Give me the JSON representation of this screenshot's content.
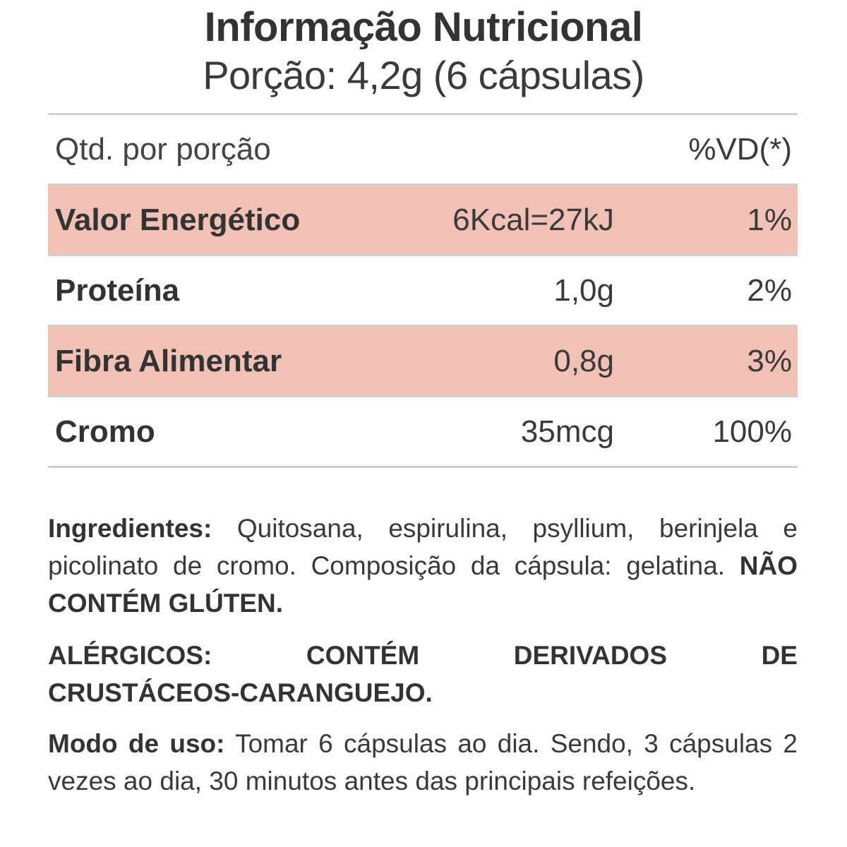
{
  "header": {
    "title": "Informação Nutricional",
    "subtitle": "Porção: 4,2g (6 cápsulas)"
  },
  "table": {
    "head_left": "Qtd. por porção",
    "head_right": "%VD(*)",
    "rows": [
      {
        "name": "Valor Energético",
        "qty": "6Kcal=27kJ",
        "vd": "1%"
      },
      {
        "name": "Proteína",
        "qty": "1,0g",
        "vd": "2%"
      },
      {
        "name": "Fibra Alimentar",
        "qty": "0,8g",
        "vd": "3%"
      },
      {
        "name": "Cromo",
        "qty": "35mcg",
        "vd": "100%"
      }
    ]
  },
  "ingredients": {
    "label": "Ingredientes:",
    "text": " Quitosana, espirulina, psyllium, berinjela e picolinato de cromo. Composição da cápsula: gelatina. ",
    "warning": "NÃO CONTÉM GLÚTEN."
  },
  "allergens": {
    "line1": [
      "ALÉRGICOS:",
      "CONTÉM",
      "DERIVADOS",
      "DE"
    ],
    "line2": "CRUSTÁCEOS-CARANGUEJO."
  },
  "usage": {
    "label": "Modo de uso:",
    "text": " Tomar 6 cápsulas ao dia. Sendo, 3 cápsulas 2 vezes ao dia, 30 minutos antes das principais refeições."
  },
  "colors": {
    "highlight_row": "#f1c1b5",
    "divider": "#cfcfcf",
    "text": "#3a3a3a"
  }
}
